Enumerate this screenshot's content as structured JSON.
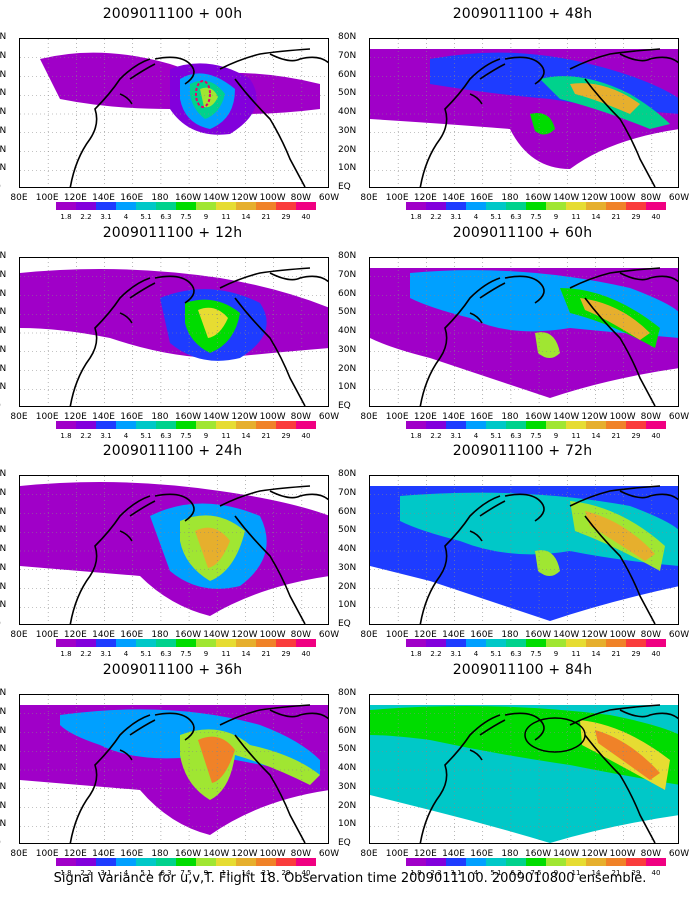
{
  "panels": [
    {
      "title": "2009011100 + 00h",
      "hours": 0
    },
    {
      "title": "2009011100 + 48h",
      "hours": 48
    },
    {
      "title": "2009011100 + 12h",
      "hours": 12
    },
    {
      "title": "2009011100 + 60h",
      "hours": 60
    },
    {
      "title": "2009011100 + 24h",
      "hours": 24
    },
    {
      "title": "2009011100 + 72h",
      "hours": 72
    },
    {
      "title": "2009011100 + 36h",
      "hours": 36
    },
    {
      "title": "2009011100 + 84h",
      "hours": 84
    }
  ],
  "lat_labels": [
    "80N",
    "70N",
    "60N",
    "50N",
    "40N",
    "30N",
    "20N",
    "10N",
    "EQ"
  ],
  "lon_labels": [
    "80E",
    "100E",
    "120E",
    "140E",
    "160E",
    "180",
    "160W",
    "140W",
    "120W",
    "100W",
    "80W",
    "60W"
  ],
  "colorbar": {
    "labels": [
      "1.8",
      "2.2",
      "3.1",
      "4",
      "5.1",
      "6.3",
      "7.5",
      "9",
      "11",
      "14",
      "21",
      "29",
      "40"
    ],
    "colors": [
      "#a000c8",
      "#8200dc",
      "#1e3cff",
      "#00a0ff",
      "#00c8c8",
      "#00d28c",
      "#00dc00",
      "#a0e632",
      "#e6dc32",
      "#e6af2d",
      "#f08228",
      "#fa3c3c",
      "#f00082"
    ]
  },
  "caption": "Signal Variance for u,v,T. Flight 18. Observation time 2009011100. 2009010800 ensemble."
}
